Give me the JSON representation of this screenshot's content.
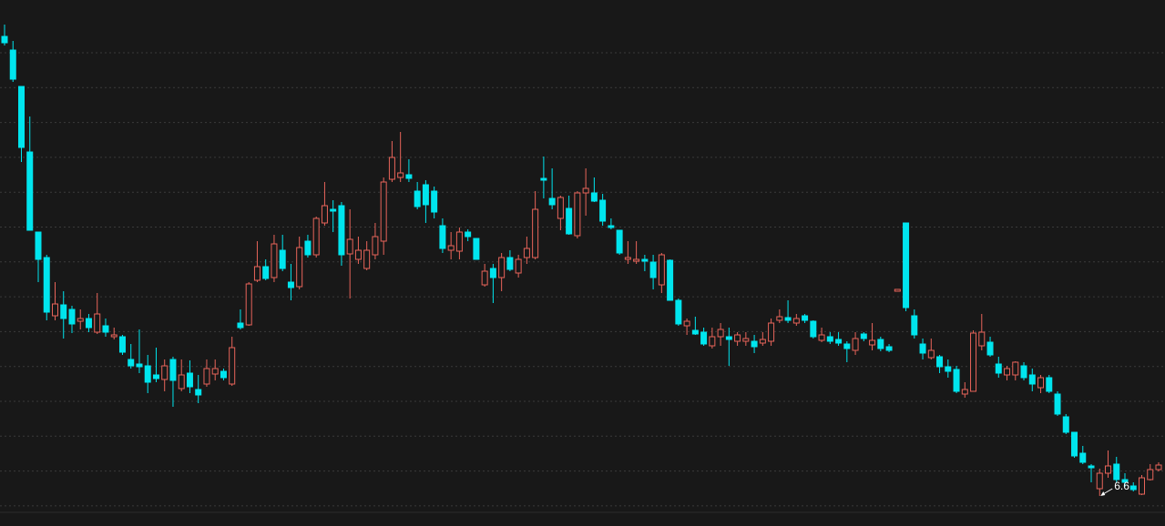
{
  "chart_data": {
    "type": "candlestick",
    "up_color": "#e8645a",
    "down_color": "#00e5ee",
    "ylim": [
      3.3,
      61.1
    ],
    "open": [
      57.1,
      55.6,
      51.6,
      44.4,
      35.6,
      32.8,
      26.4,
      27.6,
      27.1,
      25.8,
      26.1,
      24.6,
      25.3,
      24.1,
      24.1,
      21.6,
      21.1,
      20.9,
      19.9,
      19.4,
      21.6,
      18.4,
      20.1,
      18.3,
      18.9,
      20.0,
      20.3,
      18.9,
      25.6,
      25.4,
      30.3,
      31.8,
      30.6,
      33.6,
      30.1,
      29.6,
      34.6,
      33.1,
      36.6,
      38.1,
      38.5,
      33.2,
      32.6,
      31.6,
      33.1,
      34.6,
      41.4,
      41.6,
      41.9,
      40.1,
      40.8,
      40.1,
      36.3,
      33.6,
      33.5,
      35.6,
      34.9,
      29.8,
      31.6,
      30.6,
      32.8,
      31.1,
      32.8,
      32.8,
      41.5,
      39.3,
      37.1,
      38.2,
      35.2,
      39.9,
      39.9,
      39.1,
      36.3,
      35.8,
      32.6,
      32.4,
      32.6,
      32.3,
      29.8,
      32.5,
      28.1,
      25.3,
      24.8,
      24.6,
      23.1,
      24.1,
      24.1,
      23.6,
      23.6,
      23.6,
      23.4,
      23.6,
      25.9,
      26.2,
      25.6,
      26.4,
      25.8,
      23.7,
      24.1,
      23.8,
      23.3,
      22.6,
      24.4,
      23.2,
      23.8,
      23.0,
      29.1,
      36.6,
      26.4,
      23.3,
      21.8,
      21.9,
      20.8,
      20.5,
      17.8,
      18.1,
      23.1,
      23.5,
      21.1,
      19.9,
      19.9,
      20.9,
      19.9,
      18.5,
      19.6,
      17.8,
      15.3,
      13.6,
      11.3,
      9.9,
      7.4,
      9.1,
      10.1,
      8.4,
      7.7,
      6.8,
      8.4,
      9.5
    ],
    "high": [
      58.4,
      56.6,
      51.6,
      48.3,
      35.6,
      33.1,
      30.1,
      29.1,
      27.5,
      27.1,
      26.6,
      28.9,
      26.1,
      25.1,
      24.3,
      23.3,
      24.9,
      22.1,
      22.9,
      21.6,
      21.9,
      21.6,
      21.5,
      19.9,
      21.6,
      21.6,
      20.6,
      24.1,
      27.1,
      30.1,
      34.6,
      32.6,
      35.3,
      35.3,
      32.1,
      35.1,
      35.3,
      37.3,
      41.1,
      39.1,
      38.9,
      38.1,
      35.1,
      34.6,
      36.6,
      41.6,
      45.6,
      46.6,
      43.6,
      41.1,
      41.3,
      40.6,
      37.1,
      35.6,
      36.1,
      35.9,
      34.9,
      32.1,
      32.1,
      33.3,
      33.6,
      33.1,
      35.1,
      40.1,
      43.9,
      42.6,
      39.6,
      39.6,
      40.1,
      42.6,
      41.6,
      39.8,
      37.1,
      35.8,
      34.6,
      34.6,
      33.1,
      33.1,
      33.3,
      32.6,
      28.3,
      26.1,
      26.3,
      25.1,
      25.1,
      25.6,
      25.1,
      24.6,
      24.6,
      24.3,
      24.6,
      26.1,
      27.1,
      28.1,
      26.6,
      26.6,
      25.9,
      25.1,
      24.6,
      24.6,
      23.6,
      24.6,
      24.6,
      25.6,
      24.1,
      23.3,
      29.3,
      36.6,
      27.1,
      23.9,
      23.9,
      22.1,
      21.6,
      20.9,
      19.1,
      24.8,
      26.6,
      24.1,
      21.9,
      20.9,
      21.4,
      21.3,
      20.6,
      19.9,
      19.9,
      18.1,
      15.6,
      13.6,
      12.1,
      10.1,
      9.6,
      11.6,
      10.9,
      9.1,
      8.1,
      8.9,
      10.1,
      10.3
    ],
    "low": [
      56.1,
      52.1,
      43.3,
      35.8,
      30.1,
      25.9,
      25.9,
      23.9,
      24.5,
      24.9,
      24.6,
      24.4,
      24.1,
      23.8,
      22.1,
      20.6,
      20.1,
      17.9,
      19.1,
      18.1,
      16.4,
      18.1,
      17.9,
      16.8,
      18.6,
      19.3,
      19.3,
      18.7,
      24.9,
      25.3,
      30.1,
      30.3,
      30.1,
      31.3,
      28.1,
      29.3,
      32.8,
      32.8,
      36.3,
      35.6,
      31.9,
      28.3,
      32.1,
      31.4,
      32.6,
      33.1,
      41.1,
      41.1,
      41.1,
      38.1,
      36.6,
      37.1,
      33.3,
      32.6,
      32.6,
      34.6,
      32.6,
      29.6,
      27.8,
      29.1,
      31.3,
      30.6,
      32.1,
      32.6,
      39.3,
      38.1,
      35.8,
      35.3,
      34.9,
      37.4,
      38.9,
      36.3,
      35.9,
      33.1,
      32.1,
      32.1,
      31.3,
      29.3,
      28.9,
      28.1,
      25.3,
      24.3,
      24.3,
      23.1,
      22.8,
      23.1,
      20.9,
      23.1,
      23.1,
      22.3,
      23.1,
      23.1,
      25.6,
      25.6,
      25.3,
      25.6,
      23.9,
      23.5,
      23.3,
      23.1,
      21.3,
      22.1,
      23.6,
      22.6,
      22.5,
      22.4,
      29.1,
      26.9,
      23.9,
      21.6,
      21.6,
      20.1,
      19.6,
      17.9,
      17.4,
      18.1,
      22.6,
      21.9,
      19.6,
      19.3,
      19.3,
      19.3,
      18.1,
      17.9,
      17.9,
      15.4,
      13.4,
      10.8,
      10.1,
      8.1,
      6.6,
      8.6,
      8.1,
      7.6,
      7.1,
      6.7,
      8.3,
      9.3
    ],
    "close": [
      56.4,
      52.4,
      44.9,
      35.8,
      32.6,
      26.8,
      27.7,
      26.1,
      25.5,
      26.1,
      25.1,
      26.6,
      24.6,
      24.3,
      22.4,
      20.9,
      20.8,
      19.1,
      19.5,
      20.9,
      19.3,
      19.9,
      18.6,
      17.7,
      20.6,
      20.6,
      19.6,
      22.9,
      25.1,
      29.9,
      31.8,
      30.5,
      34.3,
      31.6,
      29.5,
      33.9,
      33.1,
      37.1,
      38.5,
      37.9,
      33.1,
      34.8,
      33.6,
      33.6,
      35.1,
      41.1,
      43.8,
      42.1,
      41.5,
      38.4,
      38.6,
      37.8,
      33.8,
      34.1,
      35.6,
      35.1,
      32.6,
      31.3,
      30.6,
      32.8,
      31.5,
      32.6,
      33.8,
      38.1,
      41.3,
      38.6,
      39.4,
      35.4,
      39.9,
      40.4,
      39.0,
      36.8,
      36.1,
      33.3,
      32.8,
      32.6,
      32.4,
      30.6,
      33.1,
      28.1,
      25.5,
      25.8,
      24.4,
      23.3,
      24.1,
      24.9,
      23.8,
      24.3,
      23.9,
      23.0,
      23.8,
      25.6,
      26.3,
      25.9,
      26.1,
      25.9,
      24.1,
      24.3,
      23.6,
      23.4,
      22.8,
      23.9,
      23.9,
      23.7,
      22.8,
      22.6,
      29.3,
      27.3,
      24.3,
      22.3,
      22.6,
      20.8,
      20.3,
      18.1,
      18.3,
      24.5,
      24.6,
      22.1,
      20.1,
      20.6,
      21.3,
      19.6,
      18.9,
      19.6,
      18.1,
      15.6,
      13.6,
      11.0,
      10.3,
      9.7,
      9.1,
      9.9,
      8.4,
      8.1,
      7.3,
      8.6,
      9.5,
      10.0
    ],
    "annotations": [
      {
        "text": "6.6",
        "value": 6.6
      }
    ]
  }
}
